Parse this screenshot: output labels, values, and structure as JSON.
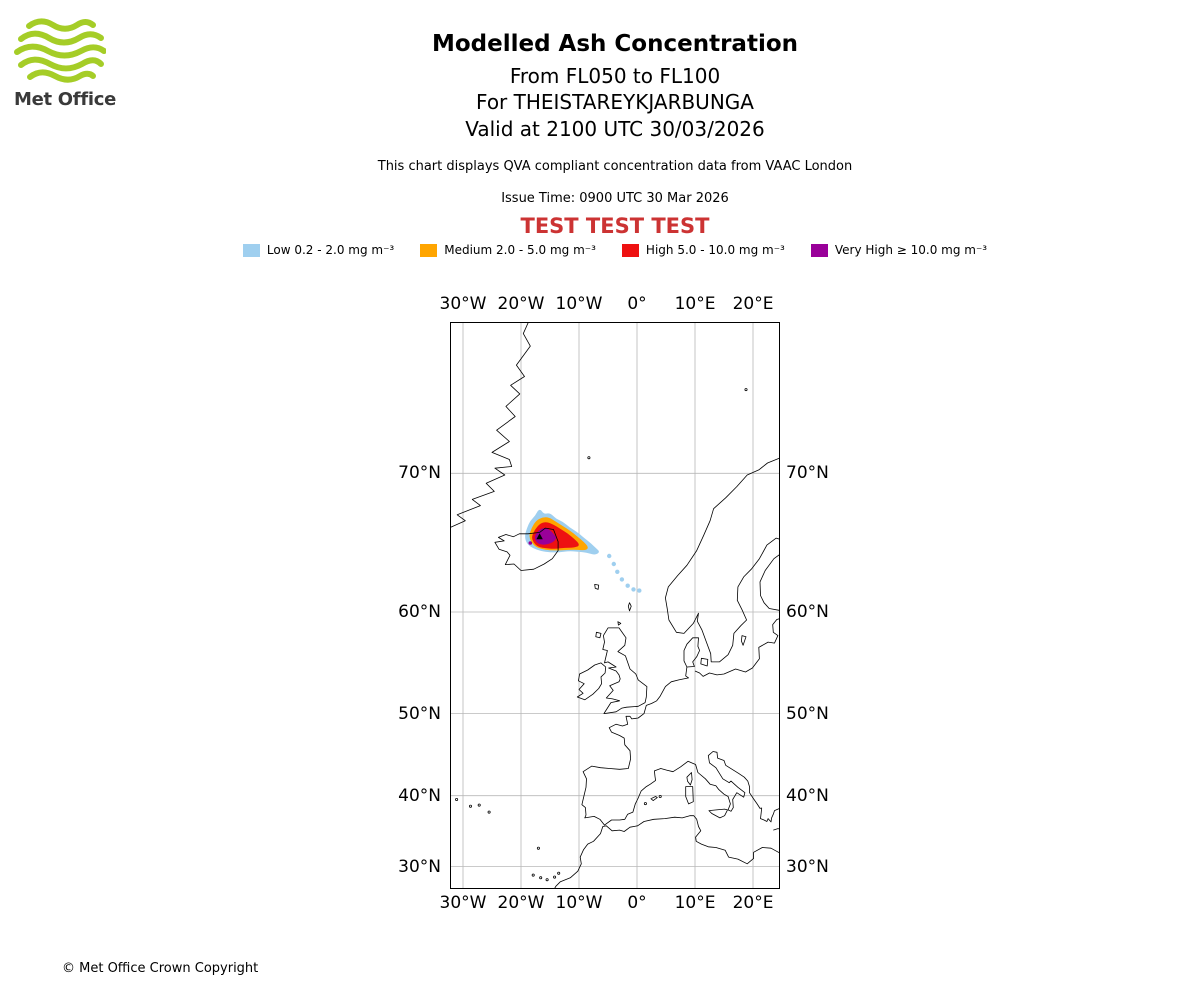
{
  "logo": {
    "label": "Met Office"
  },
  "colors": {
    "logo_green": "#a5cd27",
    "test_red": "#cc3333",
    "grid": "#b8b8b8",
    "coast": "#000000",
    "frame": "#000000"
  },
  "header": {
    "title": "Modelled Ash Concentration",
    "flight_levels": "From FL050 to FL100",
    "volcano": "For THEISTAREYKJARBUNGA",
    "valid": "Valid at 2100 UTC 30/03/2026",
    "note": "This chart displays QVA compliant concentration data from VAAC London",
    "issue_time": "Issue Time: 0900 UTC 30 Mar 2026",
    "test_banner": "TEST TEST TEST"
  },
  "legend": {
    "items": [
      {
        "label": "Low 0.2 - 2.0 mg m⁻³",
        "color": "#9fcfef"
      },
      {
        "label": "Medium 2.0 - 5.0 mg m⁻³",
        "color": "#ffa500"
      },
      {
        "label": "High 5.0 - 10.0 mg m⁻³",
        "color": "#ee1111"
      },
      {
        "label": "Very High ≥ 10.0 mg m⁻³",
        "color": "#990099"
      }
    ]
  },
  "map": {
    "lon_ticks": [
      {
        "label": "30°W",
        "lon": -30
      },
      {
        "label": "20°W",
        "lon": -20
      },
      {
        "label": "10°W",
        "lon": -10
      },
      {
        "label": "0°",
        "lon": 0
      },
      {
        "label": "10°E",
        "lon": 10
      },
      {
        "label": "20°E",
        "lon": 20
      }
    ],
    "lat_ticks": [
      {
        "label": "70°N",
        "lat": 70
      },
      {
        "label": "60°N",
        "lat": 60
      },
      {
        "label": "50°N",
        "lat": 50
      },
      {
        "label": "40°N",
        "lat": 40
      },
      {
        "label": "30°N",
        "lat": 30
      }
    ]
  },
  "chart_data": {
    "type": "geographic-contour-map",
    "projection": "mercator",
    "lon_range": [
      -32.2,
      24.6
    ],
    "lat_range": [
      26.6,
      77.3
    ],
    "grid_lons": [
      -30,
      -20,
      -10,
      0,
      10,
      20
    ],
    "grid_lats": [
      70,
      60,
      50,
      40,
      30
    ],
    "volcano": {
      "lon": -16.8,
      "lat": 65.9
    },
    "plume_levels": [
      {
        "id": "low",
        "label": "Low",
        "range": "0.2 - 2.0 mg m⁻³",
        "color": "#9fcfef",
        "polygon": [
          [
            -19.3,
            65.9
          ],
          [
            -18.9,
            66.5
          ],
          [
            -18.3,
            67.0
          ],
          [
            -17.5,
            67.3
          ],
          [
            -16.8,
            67.8
          ],
          [
            -16.1,
            67.4
          ],
          [
            -15.0,
            67.5
          ],
          [
            -14.0,
            67.1
          ],
          [
            -12.8,
            66.9
          ],
          [
            -11.6,
            66.5
          ],
          [
            -10.4,
            66.2
          ],
          [
            -9.2,
            65.8
          ],
          [
            -8.0,
            65.4
          ],
          [
            -7.0,
            65.0
          ],
          [
            -6.5,
            64.8
          ],
          [
            -7.3,
            64.6
          ],
          [
            -8.7,
            64.8
          ],
          [
            -10.2,
            64.85
          ],
          [
            -11.8,
            64.9
          ],
          [
            -13.4,
            64.8
          ],
          [
            -15.0,
            64.8
          ],
          [
            -16.6,
            64.9
          ],
          [
            -17.9,
            65.1
          ],
          [
            -18.9,
            65.4
          ]
        ]
      },
      {
        "id": "medium",
        "label": "Medium",
        "range": "2.0 - 5.0 mg m⁻³",
        "color": "#ffa500",
        "polygon": [
          [
            -18.6,
            65.9
          ],
          [
            -18.1,
            66.5
          ],
          [
            -17.3,
            67.0
          ],
          [
            -16.3,
            67.2
          ],
          [
            -15.2,
            67.2
          ],
          [
            -14.0,
            66.9
          ],
          [
            -12.8,
            66.6
          ],
          [
            -11.6,
            66.3
          ],
          [
            -10.4,
            65.9
          ],
          [
            -9.2,
            65.5
          ],
          [
            -8.4,
            65.1
          ],
          [
            -9.0,
            64.95
          ],
          [
            -10.2,
            65.0
          ],
          [
            -11.8,
            65.0
          ],
          [
            -13.4,
            64.95
          ],
          [
            -15.0,
            64.95
          ],
          [
            -16.6,
            65.05
          ],
          [
            -17.8,
            65.3
          ]
        ]
      },
      {
        "id": "high",
        "label": "High",
        "range": "5.0 - 10.0 mg m⁻³",
        "color": "#ee1111",
        "polygon": [
          [
            -18.1,
            65.9
          ],
          [
            -17.5,
            66.4
          ],
          [
            -16.6,
            66.8
          ],
          [
            -15.6,
            66.9
          ],
          [
            -14.4,
            66.7
          ],
          [
            -13.2,
            66.4
          ],
          [
            -12.0,
            66.1
          ],
          [
            -10.8,
            65.7
          ],
          [
            -9.9,
            65.3
          ],
          [
            -10.8,
            65.15
          ],
          [
            -12.4,
            65.15
          ],
          [
            -14.0,
            65.05
          ],
          [
            -15.6,
            65.1
          ],
          [
            -17.0,
            65.2
          ],
          [
            -17.8,
            65.5
          ]
        ]
      },
      {
        "id": "very_high",
        "label": "Very High",
        "range": "≥ 10.0 mg m⁻³",
        "color": "#990099",
        "polygon": [
          [
            -17.6,
            65.9
          ],
          [
            -17.0,
            66.3
          ],
          [
            -16.1,
            66.5
          ],
          [
            -15.2,
            66.4
          ],
          [
            -14.5,
            66.1
          ],
          [
            -13.9,
            65.8
          ],
          [
            -14.6,
            65.5
          ],
          [
            -15.8,
            65.35
          ],
          [
            -16.9,
            65.4
          ],
          [
            -17.4,
            65.6
          ]
        ]
      }
    ],
    "low_patches": [
      [
        -4.8,
        64.5
      ],
      [
        -4.0,
        63.9
      ],
      [
        -3.4,
        63.3
      ],
      [
        -2.6,
        62.7
      ],
      [
        -1.6,
        62.2
      ],
      [
        -0.6,
        61.9
      ],
      [
        0.4,
        61.8
      ]
    ],
    "very_high_patches": [
      [
        -18.4,
        65.45
      ]
    ]
  },
  "footer": {
    "copyright": "© Met Office Crown Copyright"
  }
}
